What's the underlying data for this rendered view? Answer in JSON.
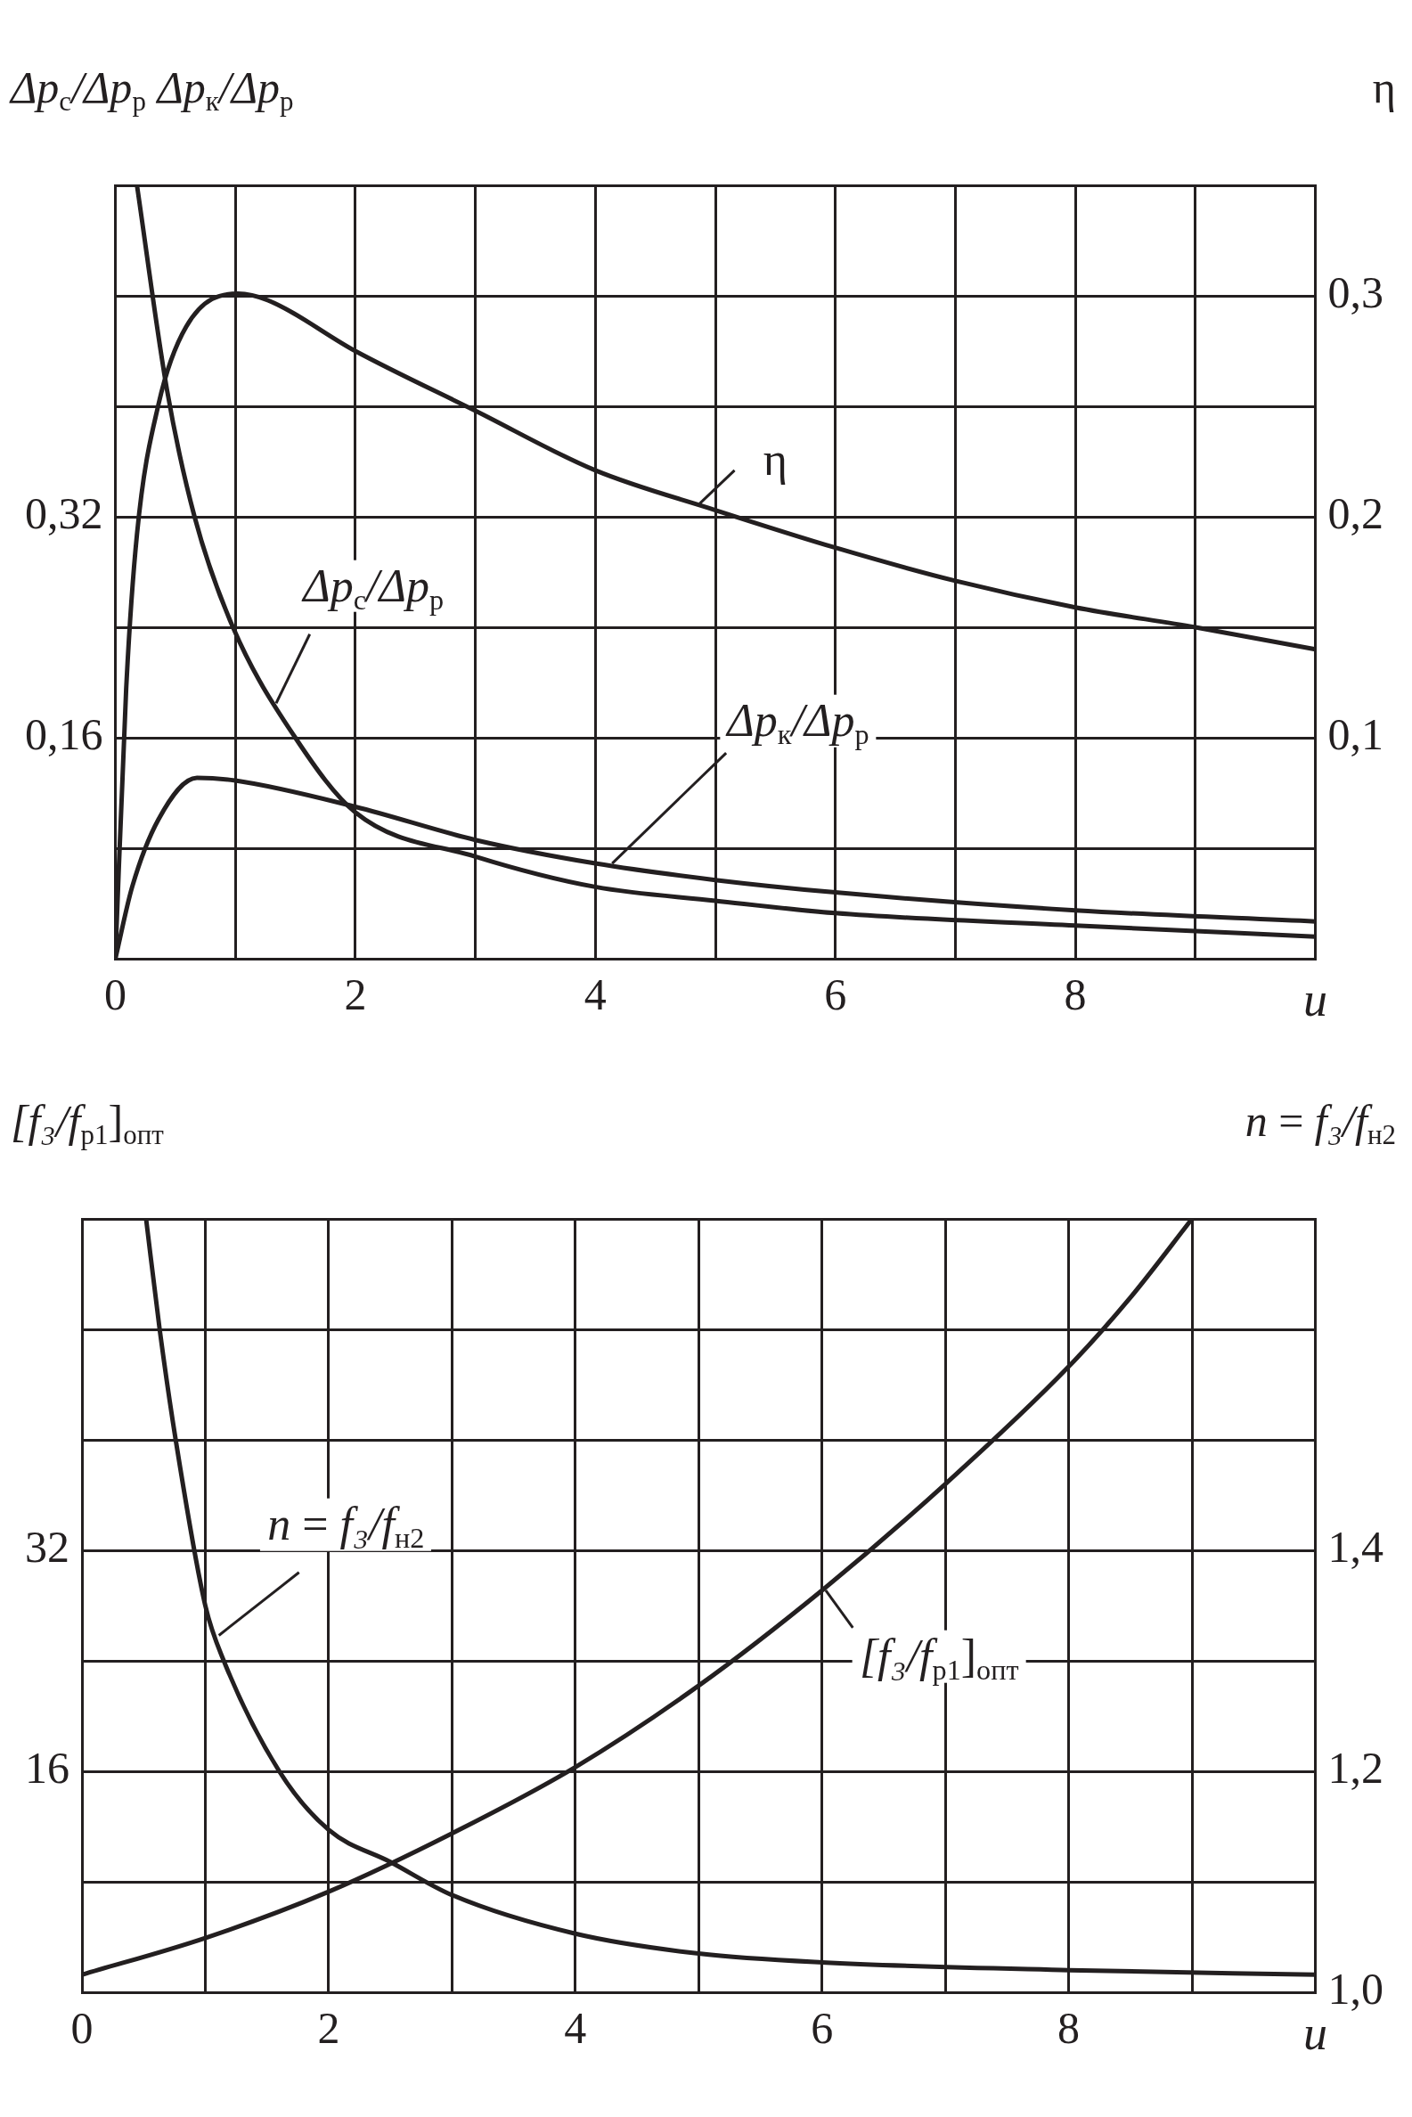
{
  "chart_data": [
    {
      "type": "line",
      "xlabel": "u",
      "ylabel": "Δp$_{с}$/Δp$_{р}$ Δp$_{к}$/Δp$_{р}$",
      "y2label": "η",
      "grid": true,
      "xlim": [
        0,
        10
      ],
      "xticks": [
        0,
        {
          "value": 1,
          "label": null
        },
        2,
        {
          "value": 3,
          "label": null
        },
        4,
        {
          "value": 5,
          "label": null
        },
        6,
        {
          "value": 7,
          "label": null
        },
        8,
        {
          "value": 9,
          "label": null
        },
        {
          "value": 10,
          "label": null
        }
      ],
      "ylim": [
        0,
        0.56
      ],
      "yticks": [
        {
          "value": 0.08,
          "label": null
        },
        {
          "value": 0.16,
          "label": "0,16"
        },
        {
          "value": 0.24,
          "label": null
        },
        {
          "value": 0.32,
          "label": "0,32"
        },
        {
          "value": 0.4,
          "label": null
        },
        {
          "value": 0.48,
          "label": null
        },
        {
          "value": 0.56,
          "label": null
        }
      ],
      "y2lim": [
        0,
        0.35
      ],
      "y2ticks": [
        {
          "value": 0.1,
          "label": "0,1"
        },
        {
          "value": 0.2,
          "label": "0,2"
        },
        {
          "value": 0.3,
          "label": "0,3"
        }
      ],
      "series": [
        {
          "name": "η",
          "color": "#231f20",
          "axis": "y2",
          "x": [
            0,
            0.09,
            0.18,
            0.36,
            0.59,
            1.02,
            1.27,
            2,
            3,
            4,
            5,
            6,
            7,
            8,
            9,
            10
          ],
          "values": [
            0,
            0.122,
            0.192,
            0.251,
            0.286,
            0.301,
            0.298,
            0.275,
            0.248,
            0.221,
            0.203,
            0.186,
            0.171,
            0.159,
            0.15,
            0.14
          ]
        },
        {
          "name": "Δp$_{с}$/Δp$_{р}$",
          "color": "#231f20",
          "x": [
            0.18,
            0.43,
            0.66,
            0.98,
            1.5,
            2,
            3,
            4,
            5,
            6,
            8,
            10
          ],
          "values": [
            0.56,
            0.412,
            0.32,
            0.24,
            0.16,
            0.106,
            0.074,
            0.052,
            0.042,
            0.033,
            0.024,
            0.016
          ]
        },
        {
          "name": "Δp$_{к}$/Δp$_{р}$",
          "color": "#231f20",
          "x": [
            0,
            0.14,
            0.36,
            0.68,
            1,
            2,
            3,
            4,
            5,
            6,
            8,
            10
          ],
          "values": [
            0,
            0.052,
            0.101,
            0.131,
            0.129,
            0.11,
            0.086,
            0.069,
            0.057,
            0.048,
            0.035,
            0.027
          ]
        }
      ]
    },
    {
      "type": "line",
      "xlabel": "u",
      "ylabel": "[f₃/f$_{р1}$]$_{опт}$",
      "y2label": "n = f₃/f$_{н2}$",
      "grid": true,
      "xlim": [
        0,
        10
      ],
      "xticks": [
        0,
        {
          "value": 1,
          "label": null
        },
        2,
        {
          "value": 3,
          "label": null
        },
        4,
        {
          "value": 5,
          "label": null
        },
        6,
        {
          "value": 7,
          "label": null
        },
        8,
        {
          "value": 9,
          "label": null
        },
        {
          "value": 10,
          "label": null
        }
      ],
      "ylim": [
        0,
        56
      ],
      "yticks": [
        {
          "value": 8,
          "label": null
        },
        16,
        {
          "value": 24,
          "label": null
        },
        32,
        {
          "value": 40,
          "label": null
        },
        {
          "value": 48,
          "label": null
        },
        {
          "value": 56,
          "label": null
        }
      ],
      "y2lim": [
        1.0,
        1.7
      ],
      "y2ticks": [
        {
          "value": 1.0,
          "label": "1,0"
        },
        {
          "value": 1.2,
          "label": "1,2"
        },
        {
          "value": 1.4,
          "label": "1,4"
        }
      ],
      "series": [
        {
          "name": "n = f₃/f$_{н2}$",
          "color": "#231f20",
          "axis": "y2",
          "x": [
            0.52,
            0.63,
            0.76,
            1,
            1.15,
            1.6,
            2,
            2.5,
            3,
            4,
            5,
            6,
            8,
            10
          ],
          "values": [
            1.7,
            1.6,
            1.5,
            1.35,
            1.3,
            1.2,
            1.147,
            1.118,
            1.088,
            1.053,
            1.035,
            1.027,
            1.02,
            1.016
          ]
        },
        {
          "name": "[f₃/f$_{р1}$]$_{опт}$",
          "color": "#231f20",
          "x": [
            0,
            1,
            2,
            3,
            4,
            5,
            6,
            7,
            8,
            8.5,
            9
          ],
          "values": [
            1.27,
            3.93,
            7.28,
            11.5,
            16.3,
            22.2,
            29.1,
            36.8,
            45.3,
            50.3,
            56
          ]
        }
      ]
    }
  ]
}
